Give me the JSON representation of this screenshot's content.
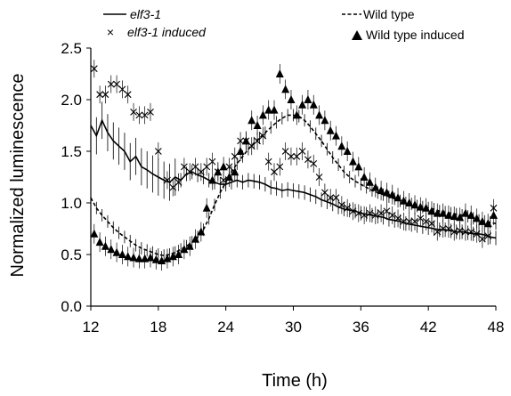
{
  "chart_data": {
    "type": "line",
    "xlabel": "Time (h)",
    "ylabel": "Normalized luminescence",
    "xlim": [
      12,
      48
    ],
    "ylim": [
      0,
      2.5
    ],
    "x_ticks": [
      12,
      18,
      24,
      30,
      36,
      42,
      48
    ],
    "y_ticks": [
      0.0,
      0.5,
      1.0,
      1.5,
      2.0,
      2.5
    ],
    "x_tick_labels": [
      "12",
      "18",
      "24",
      "30",
      "36",
      "42",
      "48"
    ],
    "y_tick_labels": [
      "0.0",
      "0.5",
      "1.0",
      "1.5",
      "2.0",
      "2.5"
    ],
    "legend_position": "top",
    "series": [
      {
        "name": "elf3-1",
        "style": "solid-line",
        "color": "#000000",
        "x": [
          12,
          12.5,
          13,
          13.5,
          14,
          14.5,
          15,
          15.5,
          16,
          16.5,
          17,
          17.5,
          18,
          18.5,
          19,
          19.5,
          20,
          20.5,
          21,
          21.5,
          22,
          22.5,
          23,
          23.5,
          24,
          24.5,
          25,
          25.5,
          26,
          26.5,
          27,
          27.5,
          28,
          28.5,
          29,
          29.5,
          30,
          30.5,
          31,
          31.5,
          32,
          32.5,
          33,
          33.5,
          34,
          34.5,
          35,
          35.5,
          36,
          36.5,
          37,
          37.5,
          38,
          38.5,
          39,
          39.5,
          40,
          40.5,
          41,
          41.5,
          42,
          42.5,
          43,
          43.5,
          44,
          44.5,
          45,
          45.5,
          46,
          46.5,
          47,
          47.5,
          48
        ],
        "y": [
          1.75,
          1.65,
          1.8,
          1.68,
          1.6,
          1.55,
          1.5,
          1.4,
          1.45,
          1.35,
          1.32,
          1.28,
          1.25,
          1.22,
          1.2,
          1.25,
          1.22,
          1.28,
          1.3,
          1.27,
          1.25,
          1.22,
          1.2,
          1.18,
          1.18,
          1.2,
          1.22,
          1.2,
          1.22,
          1.21,
          1.2,
          1.18,
          1.15,
          1.14,
          1.12,
          1.13,
          1.12,
          1.11,
          1.1,
          1.08,
          1.06,
          1.03,
          1.01,
          0.99,
          0.96,
          0.94,
          0.93,
          0.92,
          0.9,
          0.89,
          0.88,
          0.87,
          0.86,
          0.84,
          0.83,
          0.82,
          0.8,
          0.79,
          0.78,
          0.77,
          0.76,
          0.75,
          0.74,
          0.74,
          0.73,
          0.72,
          0.72,
          0.71,
          0.7,
          0.7,
          0.69,
          0.67,
          0.66
        ]
      },
      {
        "name": "elf3-1 induced",
        "style": "x-markers",
        "color": "#000000",
        "x": [
          12.3,
          12.8,
          13.3,
          13.8,
          14.3,
          14.8,
          15.3,
          15.8,
          16.3,
          16.8,
          17.3,
          18,
          18.8,
          19.3,
          19.8,
          20.3,
          20.8,
          21.3,
          21.8,
          22.3,
          22.8,
          23.3,
          23.8,
          24.3,
          24.8,
          25.3,
          25.8,
          26.3,
          26.8,
          27.3,
          27.8,
          28.3,
          28.8,
          29.3,
          29.8,
          30.3,
          30.8,
          31.3,
          31.8,
          32.3,
          32.8,
          33.3,
          33.8,
          34.3,
          34.8,
          35.3,
          35.8,
          36.3,
          36.8,
          37.3,
          37.8,
          38.3,
          38.8,
          39.3,
          39.8,
          40.3,
          40.8,
          41.3,
          41.8,
          42.3,
          42.8,
          43.3,
          43.8,
          44.3,
          44.8,
          45.3,
          45.8,
          46.3,
          46.8,
          47.3,
          47.8
        ],
        "y": [
          2.3,
          2.05,
          2.05,
          2.15,
          2.15,
          2.1,
          2.05,
          1.88,
          1.85,
          1.85,
          1.88,
          1.5,
          1.22,
          1.15,
          1.2,
          1.35,
          1.3,
          1.35,
          1.3,
          1.35,
          1.4,
          1.3,
          1.22,
          1.35,
          1.45,
          1.6,
          1.6,
          1.55,
          1.6,
          1.65,
          1.4,
          1.3,
          1.35,
          1.5,
          1.45,
          1.45,
          1.5,
          1.42,
          1.38,
          1.25,
          1.1,
          1.05,
          1.05,
          0.98,
          0.95,
          0.92,
          0.9,
          0.88,
          0.9,
          0.88,
          0.9,
          0.92,
          0.88,
          0.85,
          0.82,
          0.82,
          0.82,
          0.85,
          0.82,
          0.8,
          0.72,
          0.75,
          0.75,
          0.72,
          0.73,
          0.72,
          0.72,
          0.7,
          0.65,
          0.68,
          0.95
        ]
      },
      {
        "name": "Wild type",
        "style": "dashed-line",
        "color": "#000000",
        "x": [
          12,
          12.5,
          13,
          13.5,
          14,
          14.5,
          15,
          15.5,
          16,
          16.5,
          17,
          17.5,
          18,
          18.5,
          19,
          19.5,
          20,
          20.5,
          21,
          21.5,
          22,
          22.5,
          23,
          23.5,
          24,
          24.5,
          25,
          25.5,
          26,
          26.5,
          27,
          27.5,
          28,
          28.5,
          29,
          29.5,
          30,
          30.5,
          31,
          31.5,
          32,
          32.5,
          33,
          33.5,
          34,
          34.5,
          35,
          35.5,
          36,
          36.5,
          37,
          37.5,
          38,
          38.5,
          39,
          39.5,
          40,
          40.5,
          41,
          41.5,
          42,
          42.5,
          43,
          43.5,
          44,
          44.5,
          45,
          45.5,
          46,
          46.5,
          47,
          47.5,
          48
        ],
        "y": [
          1.05,
          0.95,
          0.88,
          0.82,
          0.76,
          0.71,
          0.67,
          0.63,
          0.59,
          0.56,
          0.54,
          0.52,
          0.5,
          0.49,
          0.5,
          0.52,
          0.55,
          0.58,
          0.62,
          0.67,
          0.74,
          0.85,
          0.98,
          1.1,
          1.2,
          1.3,
          1.38,
          1.45,
          1.52,
          1.58,
          1.63,
          1.68,
          1.73,
          1.78,
          1.82,
          1.85,
          1.85,
          1.84,
          1.8,
          1.74,
          1.67,
          1.6,
          1.52,
          1.44,
          1.37,
          1.3,
          1.25,
          1.21,
          1.18,
          1.15,
          1.12,
          1.1,
          1.08,
          1.06,
          1.04,
          1.02,
          1.0,
          0.99,
          0.97,
          0.96,
          0.95,
          0.94,
          0.92,
          0.91,
          0.9,
          0.89,
          0.88,
          0.87,
          0.85,
          0.83,
          0.82,
          0.81,
          0.8
        ]
      },
      {
        "name": "Wild type induced",
        "style": "triangle-markers",
        "color": "#000000",
        "x": [
          12.3,
          12.8,
          13.3,
          13.8,
          14.3,
          14.8,
          15.3,
          15.8,
          16.3,
          16.8,
          17.3,
          17.8,
          18.3,
          18.8,
          19.3,
          19.8,
          20.3,
          20.8,
          21.3,
          21.8,
          22.3,
          22.8,
          23.3,
          23.8,
          24.3,
          24.8,
          25.3,
          25.8,
          26.3,
          26.8,
          27.3,
          27.8,
          28.3,
          28.8,
          29.3,
          29.8,
          30.3,
          30.8,
          31.3,
          31.8,
          32.3,
          32.8,
          33.3,
          33.8,
          34.3,
          34.8,
          35.3,
          35.8,
          36.3,
          36.8,
          37.3,
          37.8,
          38.3,
          38.8,
          39.3,
          39.8,
          40.3,
          40.8,
          41.3,
          41.8,
          42.3,
          42.8,
          43.3,
          43.8,
          44.3,
          44.8,
          45.3,
          45.8,
          46.3,
          46.8,
          47.3,
          47.8
        ],
        "y": [
          0.7,
          0.62,
          0.58,
          0.55,
          0.52,
          0.5,
          0.48,
          0.47,
          0.46,
          0.46,
          0.47,
          0.45,
          0.44,
          0.46,
          0.48,
          0.5,
          0.55,
          0.58,
          0.65,
          0.72,
          0.95,
          1.22,
          1.3,
          1.35,
          1.25,
          1.3,
          1.5,
          1.6,
          1.8,
          1.75,
          1.85,
          1.9,
          1.9,
          2.25,
          2.1,
          2.0,
          1.85,
          1.95,
          2.0,
          1.95,
          1.85,
          1.8,
          1.7,
          1.65,
          1.55,
          1.5,
          1.4,
          1.35,
          1.25,
          1.2,
          1.15,
          1.12,
          1.1,
          1.08,
          1.05,
          1.02,
          1.0,
          0.98,
          0.96,
          0.95,
          0.92,
          0.9,
          0.9,
          0.88,
          0.87,
          0.86,
          0.9,
          0.88,
          0.85,
          0.82,
          0.8,
          0.88
        ]
      }
    ]
  }
}
